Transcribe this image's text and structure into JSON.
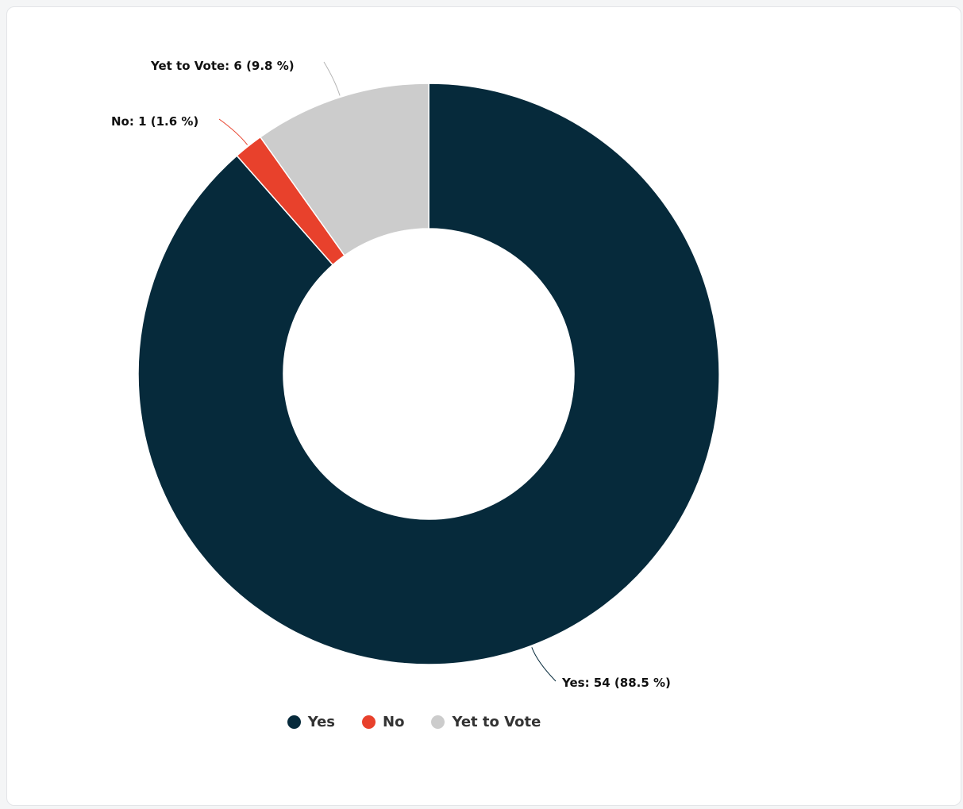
{
  "chart_data": {
    "type": "pie",
    "variant": "donut",
    "categories": [
      "Yes",
      "No",
      "Yet to Vote"
    ],
    "values": [
      54,
      1,
      6
    ],
    "percentages": [
      88.5,
      1.6,
      9.8
    ],
    "colors": [
      "#062a3b",
      "#e8412c",
      "#cccccc"
    ],
    "data_labels": [
      "Yes: 54 (88.5 %)",
      "No: 1 (1.6 %)",
      "Yet to Vote: 6 (9.8 %)"
    ],
    "legend": {
      "position": "bottom",
      "entries": [
        "Yes",
        "No",
        "Yet to Vote"
      ]
    },
    "title": ""
  }
}
